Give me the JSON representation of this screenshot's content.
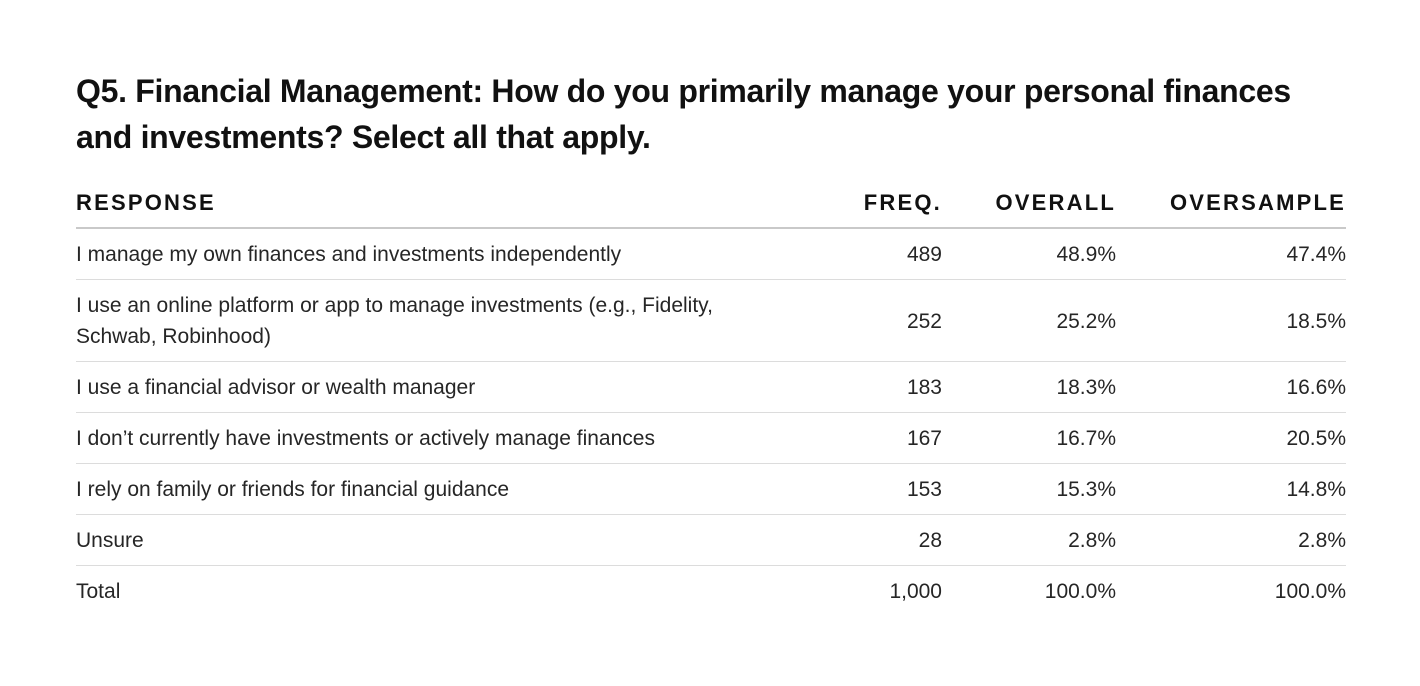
{
  "question": {
    "number": "Q5.",
    "topic": "Financial Management:",
    "text": "How do you primarily manage your personal finances and investments? Select all that apply."
  },
  "table": {
    "headers": {
      "response": "RESPONSE",
      "freq": "FREQ.",
      "overall": "OVERALL",
      "oversample": "OVERSAMPLE"
    },
    "rows": [
      {
        "response": "I manage my own finances and investments independently",
        "freq": "489",
        "overall": "48.9%",
        "oversample": "47.4%"
      },
      {
        "response": "I use an online platform or app to manage investments (e.g., Fidelity, Schwab, Robinhood)",
        "freq": "252",
        "overall": "25.2%",
        "oversample": "18.5%"
      },
      {
        "response": "I use a financial advisor or wealth manager",
        "freq": "183",
        "overall": "18.3%",
        "oversample": "16.6%"
      },
      {
        "response": "I don’t currently have investments or actively manage finances",
        "freq": "167",
        "overall": "16.7%",
        "oversample": "20.5%"
      },
      {
        "response": "I rely on family or friends for financial guidance",
        "freq": "153",
        "overall": "15.3%",
        "oversample": "14.8%"
      },
      {
        "response": "Unsure",
        "freq": "28",
        "overall": "2.8%",
        "oversample": "2.8%"
      }
    ],
    "total": {
      "response": "Total",
      "freq": "1,000",
      "overall": "100.0%",
      "oversample": "100.0%"
    }
  }
}
